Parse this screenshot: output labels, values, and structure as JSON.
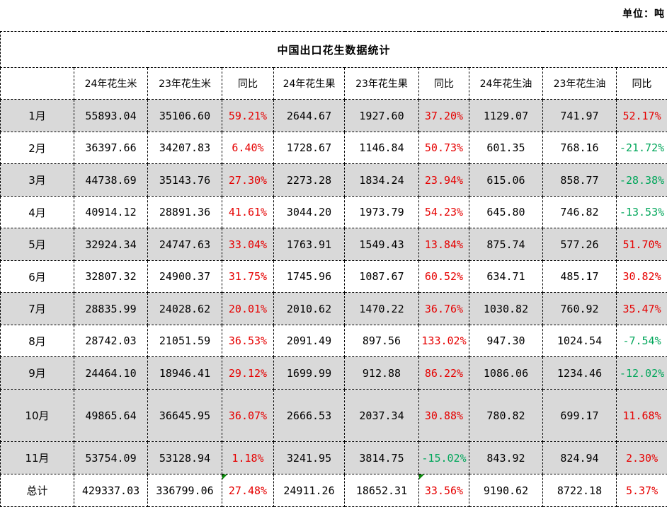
{
  "unit_label": "单位：吨",
  "table": {
    "title": "中国出口花生数据统计",
    "columns": [
      "",
      "24年花生米",
      "23年花生米",
      "同比",
      "24年花生果",
      "23年花生果",
      "同比",
      "24年花生油",
      "23年花生油",
      "同比"
    ],
    "rows": [
      {
        "month": "1月",
        "shaded": true,
        "values": [
          "55893.04",
          "35106.60",
          "59.21%",
          "2644.67",
          "1927.60",
          "37.20%",
          "1129.07",
          "741.97",
          "52.17%"
        ]
      },
      {
        "month": "2月",
        "shaded": false,
        "values": [
          "36397.66",
          "34207.83",
          "6.40%",
          "1728.67",
          "1146.84",
          "50.73%",
          "601.35",
          "768.16",
          "-21.72%"
        ]
      },
      {
        "month": "3月",
        "shaded": true,
        "values": [
          "44738.69",
          "35143.76",
          "27.30%",
          "2273.28",
          "1834.24",
          "23.94%",
          "615.06",
          "858.77",
          "-28.38%"
        ]
      },
      {
        "month": "4月",
        "shaded": false,
        "values": [
          "40914.12",
          "28891.36",
          "41.61%",
          "3044.20",
          "1973.79",
          "54.23%",
          "645.80",
          "746.82",
          "-13.53%"
        ]
      },
      {
        "month": "5月",
        "shaded": true,
        "values": [
          "32924.34",
          "24747.63",
          "33.04%",
          "1763.91",
          "1549.43",
          "13.84%",
          "875.74",
          "577.26",
          "51.70%"
        ]
      },
      {
        "month": "6月",
        "shaded": false,
        "values": [
          "32807.32",
          "24900.37",
          "31.75%",
          "1745.96",
          "1087.67",
          "60.52%",
          "634.71",
          "485.17",
          "30.82%"
        ]
      },
      {
        "month": "7月",
        "shaded": true,
        "values": [
          "28835.99",
          "24028.62",
          "20.01%",
          "2010.62",
          "1470.22",
          "36.76%",
          "1030.82",
          "760.92",
          "35.47%"
        ]
      },
      {
        "month": "8月",
        "shaded": false,
        "values": [
          "28742.03",
          "21051.59",
          "36.53%",
          "2091.49",
          "897.56",
          "133.02%",
          "947.30",
          "1024.54",
          "-7.54%"
        ]
      },
      {
        "month": "9月",
        "shaded": true,
        "values": [
          "24464.10",
          "18946.41",
          "29.12%",
          "1699.99",
          "912.88",
          "86.22%",
          "1086.06",
          "1234.46",
          "-12.02%"
        ]
      },
      {
        "month": "10月",
        "shaded": true,
        "tall": true,
        "values": [
          "49865.64",
          "36645.95",
          "36.07%",
          "2666.53",
          "2037.34",
          "30.88%",
          "780.82",
          "699.17",
          "11.68%"
        ]
      },
      {
        "month": "11月",
        "shaded": true,
        "values": [
          "53754.09",
          "53128.94",
          "1.18%",
          "3241.95",
          "3814.75",
          "-15.02%",
          "843.92",
          "824.94",
          "2.30%"
        ]
      },
      {
        "month": "总计",
        "shaded": false,
        "corner_marks": [
          2,
          5
        ],
        "values": [
          "429337.03",
          "336799.06",
          "27.48%",
          "24911.26",
          "18652.31",
          "33.56%",
          "9190.62",
          "8722.18",
          "5.37%"
        ]
      }
    ]
  }
}
